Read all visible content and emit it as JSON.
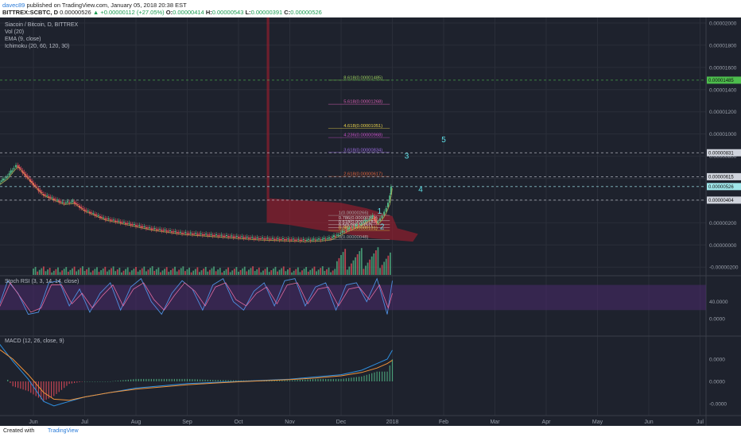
{
  "header": {
    "user": "davec89",
    "published": "published on TradingView.com, January 05, 2018 20:38 EST",
    "symbol_line": "BITTREX:SCBTC, D",
    "last": "0.00000526",
    "change": "▲ +0.00000112 (+27.05%)",
    "ohlc": {
      "O": "0.00000414",
      "H": "0.00000543",
      "L": "0.00000391",
      "C": "0.00000526"
    }
  },
  "legend": {
    "title": "Siacoin / Bitcoin, D, BITTREX",
    "vol": "Vol (20)",
    "ema": "EMA (9, close)",
    "ichimoku": "Ichimoku (20, 60, 120, 30)"
  },
  "colors": {
    "bg": "#1e222d",
    "grid": "#2a2e39",
    "up": "#53b987",
    "down": "#eb4d5c",
    "wave": "#5ee1e8",
    "stoch_band": "#4b2a6b",
    "macd_line": "#2e8fe0",
    "signal_line": "#f0933a",
    "green_dashed": "#4dbd4d"
  },
  "price_axis": {
    "labels": [
      "0.00002000",
      "0.00001800",
      "0.00001600",
      "0.00001400",
      "0.00001200",
      "0.00001000",
      "0.00000800",
      "0.00000600",
      "0.00000400",
      "0.00000200",
      "0.00000000",
      "-0.00000200"
    ],
    "values": [
      2000,
      1800,
      1600,
      1400,
      1200,
      1000,
      800,
      600,
      400,
      200,
      0,
      -200
    ],
    "range": [
      -270,
      2050
    ],
    "badges": [
      {
        "label": "0.00001485",
        "value": 1485,
        "color": "#4dbd4d"
      },
      {
        "label": "0.00000831",
        "value": 831,
        "color": "#cfd3dc"
      },
      {
        "label": "0.00000615",
        "value": 615,
        "color": "#cfd3dc"
      },
      {
        "label": "0.00000526",
        "value": 526,
        "color": "#9fe6ea"
      },
      {
        "label": "0.00000404",
        "value": 404,
        "color": "#cfd3dc"
      }
    ]
  },
  "time_axis": {
    "labels": [
      "Jun",
      "Jul",
      "Aug",
      "Sep",
      "Oct",
      "Nov",
      "Dec",
      "2018",
      "Feb",
      "Mar",
      "Apr",
      "May",
      "Jun",
      "Jul"
    ],
    "pos": [
      1,
      2,
      3,
      4,
      5,
      6,
      7,
      8,
      9,
      10,
      11,
      12,
      13,
      14
    ]
  },
  "fib_levels": [
    {
      "label": "8.618(0.00001485)",
      "value": 1485,
      "color": "#9ccf5c"
    },
    {
      "label": "5.618(0.00001268)",
      "value": 1268,
      "color": "#d45eb0"
    },
    {
      "label": "4.618(0.00001051)",
      "value": 1051,
      "color": "#e8d24a"
    },
    {
      "label": "4.236(0.00000968)",
      "value": 968,
      "color": "#c94fc9"
    },
    {
      "label": "3.618(0.00000834)",
      "value": 834,
      "color": "#9b6be0"
    },
    {
      "label": "2.618(0.00000617)",
      "value": 617,
      "color": "#e0623a"
    },
    {
      "label": "1(0.00000266)",
      "value": 266,
      "color": "#aaaaaa"
    },
    {
      "label": "0.786(0.00000219)",
      "value": 219,
      "color": "#cccccc"
    },
    {
      "label": "0.618(0.00000183)",
      "value": 183,
      "color": "#dddddd"
    },
    {
      "label": "0.5(0.00000157)",
      "value": 157,
      "color": "#dddddd"
    },
    {
      "label": "0.382(0.00000131)",
      "value": 131,
      "color": "#e8d24a"
    },
    {
      "label": "0(0.00000048)",
      "value": 48,
      "color": "#aaaaaa"
    }
  ],
  "waves": [
    {
      "label": "1",
      "t": 7.75,
      "v": 280
    },
    {
      "label": "2",
      "t": 7.8,
      "v": 140
    },
    {
      "label": "3",
      "t": 8.28,
      "v": 780
    },
    {
      "label": "4",
      "t": 8.55,
      "v": 480
    },
    {
      "label": "5",
      "t": 9.0,
      "v": 925
    }
  ],
  "wave_path": [
    {
      "t": 6.75,
      "v": 60
    },
    {
      "t": 7.62,
      "v": 260
    },
    {
      "t": 7.75,
      "v": 130
    },
    {
      "t": 8.05,
      "v": 690
    },
    {
      "t": 8.3,
      "v": 505
    },
    {
      "t": 8.6,
      "v": 870
    }
  ],
  "price_series": [
    [
      0.0,
      420
    ],
    [
      0.05,
      340
    ],
    [
      0.12,
      400
    ],
    [
      0.2,
      520
    ],
    [
      0.35,
      560
    ],
    [
      0.5,
      610
    ],
    [
      0.62,
      680
    ],
    [
      0.7,
      720
    ],
    [
      0.85,
      640
    ],
    [
      1.0,
      560
    ],
    [
      1.2,
      460
    ],
    [
      1.4,
      420
    ],
    [
      1.6,
      380
    ],
    [
      1.8,
      390
    ],
    [
      2.0,
      320
    ],
    [
      2.2,
      280
    ],
    [
      2.4,
      240
    ],
    [
      2.6,
      220
    ],
    [
      2.8,
      200
    ],
    [
      3.0,
      180
    ],
    [
      3.3,
      150
    ],
    [
      3.6,
      130
    ],
    [
      3.9,
      110
    ],
    [
      4.2,
      100
    ],
    [
      4.5,
      90
    ],
    [
      4.8,
      80
    ],
    [
      5.1,
      70
    ],
    [
      5.4,
      60
    ],
    [
      5.7,
      55
    ],
    [
      6.0,
      50
    ],
    [
      6.3,
      45
    ],
    [
      6.6,
      50
    ],
    [
      6.8,
      60
    ],
    [
      6.95,
      90
    ],
    [
      7.1,
      130
    ],
    [
      7.25,
      160
    ],
    [
      7.4,
      190
    ],
    [
      7.55,
      230
    ],
    [
      7.65,
      260
    ],
    [
      7.72,
      200
    ],
    [
      7.8,
      240
    ],
    [
      7.88,
      300
    ],
    [
      7.95,
      380
    ],
    [
      8.0,
      526
    ]
  ],
  "stoch": {
    "title": "Stoch RSI (3, 3, 14, 14, close)",
    "labels": [
      "40.0000",
      "0.0000"
    ],
    "values": [
      40,
      0
    ],
    "range": [
      -40,
      100
    ],
    "band": [
      20,
      80
    ],
    "k": [
      [
        0.0,
        30
      ],
      [
        0.1,
        80
      ],
      [
        0.3,
        20
      ],
      [
        0.5,
        90
      ],
      [
        0.7,
        60
      ],
      [
        0.9,
        10
      ],
      [
        1.1,
        15
      ],
      [
        1.3,
        85
      ],
      [
        1.5,
        90
      ],
      [
        1.7,
        30
      ],
      [
        1.9,
        70
      ],
      [
        2.1,
        15
      ],
      [
        2.3,
        60
      ],
      [
        2.5,
        85
      ],
      [
        2.7,
        20
      ],
      [
        2.9,
        75
      ],
      [
        3.1,
        95
      ],
      [
        3.3,
        40
      ],
      [
        3.5,
        10
      ],
      [
        3.7,
        60
      ],
      [
        3.9,
        90
      ],
      [
        4.1,
        70
      ],
      [
        4.3,
        20
      ],
      [
        4.5,
        80
      ],
      [
        4.7,
        95
      ],
      [
        4.9,
        40
      ],
      [
        5.1,
        20
      ],
      [
        5.3,
        65
      ],
      [
        5.5,
        85
      ],
      [
        5.7,
        30
      ],
      [
        5.9,
        90
      ],
      [
        6.1,
        95
      ],
      [
        6.3,
        30
      ],
      [
        6.5,
        75
      ],
      [
        6.7,
        85
      ],
      [
        6.9,
        20
      ],
      [
        7.1,
        80
      ],
      [
        7.3,
        85
      ],
      [
        7.5,
        40
      ],
      [
        7.7,
        95
      ],
      [
        7.9,
        10
      ],
      [
        8.0,
        90
      ]
    ],
    "d": [
      [
        0.0,
        40
      ],
      [
        0.15,
        70
      ],
      [
        0.35,
        30
      ],
      [
        0.55,
        85
      ],
      [
        0.75,
        50
      ],
      [
        0.95,
        15
      ],
      [
        1.15,
        25
      ],
      [
        1.35,
        80
      ],
      [
        1.55,
        80
      ],
      [
        1.75,
        35
      ],
      [
        1.95,
        60
      ],
      [
        2.15,
        25
      ],
      [
        2.35,
        55
      ],
      [
        2.55,
        80
      ],
      [
        2.75,
        30
      ],
      [
        2.95,
        70
      ],
      [
        3.15,
        85
      ],
      [
        3.35,
        45
      ],
      [
        3.55,
        20
      ],
      [
        3.75,
        55
      ],
      [
        3.95,
        85
      ],
      [
        4.15,
        65
      ],
      [
        4.35,
        30
      ],
      [
        4.55,
        75
      ],
      [
        4.75,
        85
      ],
      [
        4.95,
        45
      ],
      [
        5.15,
        30
      ],
      [
        5.35,
        60
      ],
      [
        5.55,
        75
      ],
      [
        5.75,
        35
      ],
      [
        5.95,
        80
      ],
      [
        6.15,
        85
      ],
      [
        6.35,
        35
      ],
      [
        6.55,
        70
      ],
      [
        6.75,
        75
      ],
      [
        6.95,
        30
      ],
      [
        7.15,
        70
      ],
      [
        7.35,
        75
      ],
      [
        7.55,
        45
      ],
      [
        7.75,
        80
      ],
      [
        7.92,
        25
      ],
      [
        8.0,
        60
      ]
    ]
  },
  "macd": {
    "title": "MACD (12, 26, close, 9)",
    "labels": [
      "0.0000",
      "0.0000",
      "-0.0000"
    ],
    "values": [
      1,
      0,
      -1
    ],
    "range": [
      -1.5,
      2
    ],
    "macd": [
      [
        0.0,
        1.9
      ],
      [
        0.3,
        1.8
      ],
      [
        0.6,
        0.9
      ],
      [
        0.9,
        0.1
      ],
      [
        1.2,
        -0.9
      ],
      [
        1.4,
        -1.1
      ],
      [
        1.7,
        -0.9
      ],
      [
        2.0,
        -0.7
      ],
      [
        2.5,
        -0.5
      ],
      [
        3.0,
        -0.3
      ],
      [
        3.5,
        -0.2
      ],
      [
        4.0,
        -0.1
      ],
      [
        4.5,
        -0.05
      ],
      [
        5.0,
        0.0
      ],
      [
        5.5,
        0.05
      ],
      [
        6.0,
        0.1
      ],
      [
        6.5,
        0.2
      ],
      [
        7.0,
        0.3
      ],
      [
        7.4,
        0.5
      ],
      [
        7.7,
        0.8
      ],
      [
        7.9,
        1.0
      ],
      [
        8.0,
        1.4
      ]
    ],
    "signal": [
      [
        0.0,
        1.5
      ],
      [
        0.3,
        1.5
      ],
      [
        0.6,
        1.0
      ],
      [
        0.9,
        0.3
      ],
      [
        1.2,
        -0.5
      ],
      [
        1.4,
        -0.8
      ],
      [
        1.7,
        -0.85
      ],
      [
        2.0,
        -0.7
      ],
      [
        2.5,
        -0.5
      ],
      [
        3.0,
        -0.35
      ],
      [
        3.5,
        -0.25
      ],
      [
        4.0,
        -0.15
      ],
      [
        4.5,
        -0.08
      ],
      [
        5.0,
        -0.02
      ],
      [
        5.5,
        0.03
      ],
      [
        6.0,
        0.08
      ],
      [
        6.5,
        0.15
      ],
      [
        7.0,
        0.25
      ],
      [
        7.4,
        0.4
      ],
      [
        7.7,
        0.6
      ],
      [
        7.9,
        0.8
      ],
      [
        8.0,
        0.95
      ]
    ]
  },
  "footer": {
    "created": "Created with",
    "brand": "TradingView"
  }
}
